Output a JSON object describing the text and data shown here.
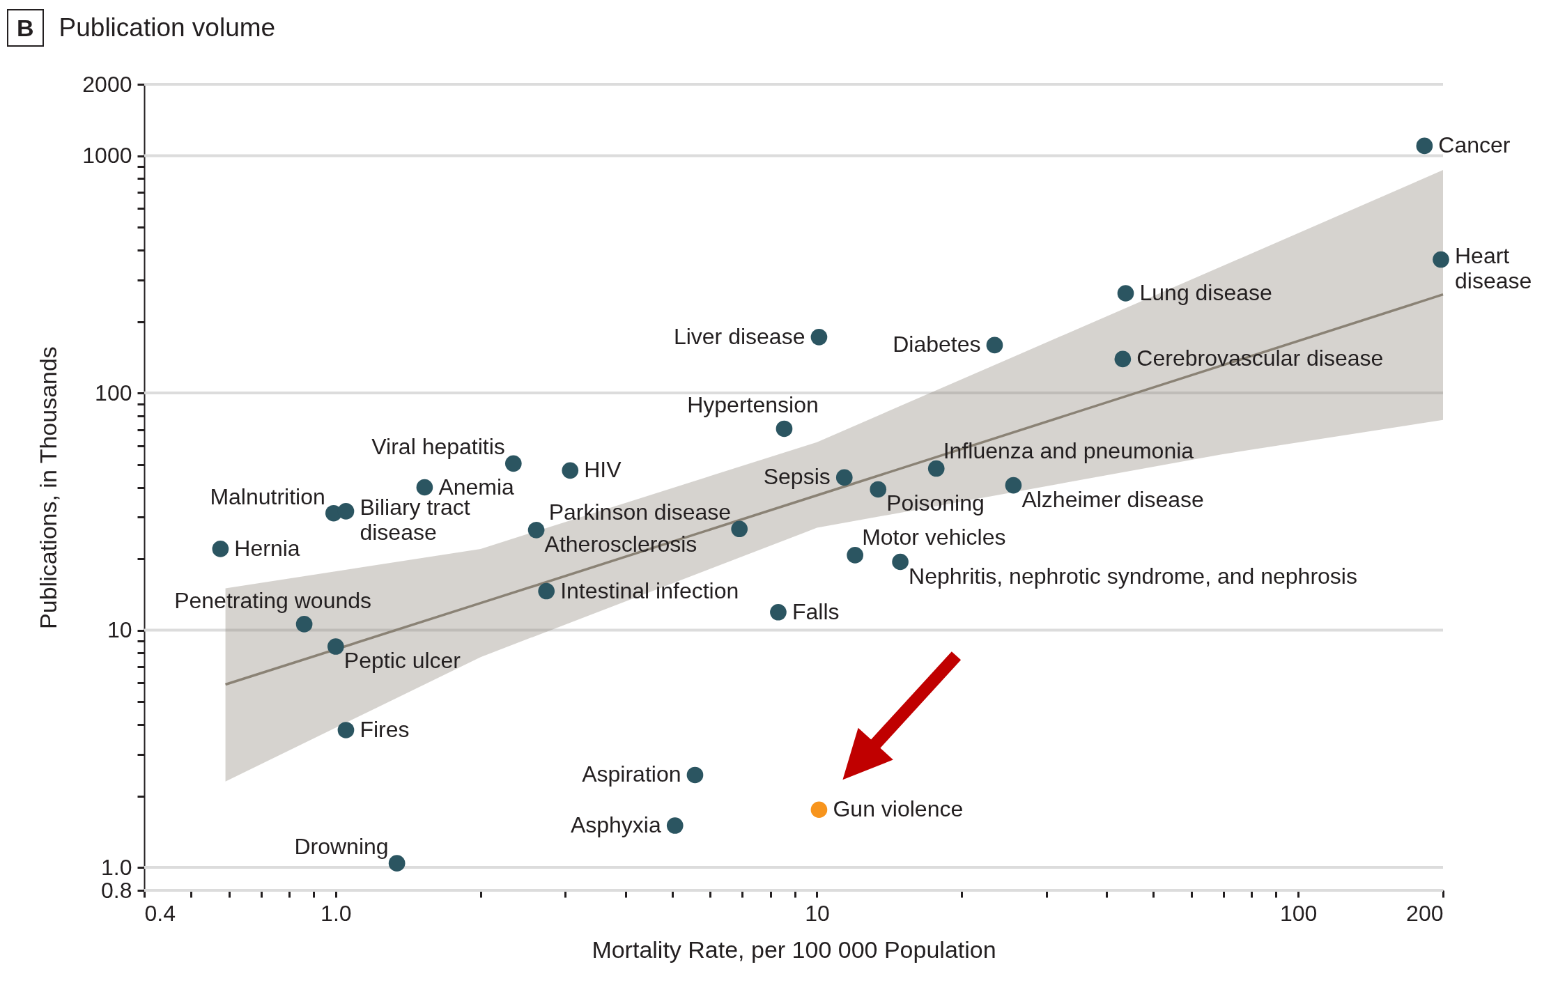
{
  "chart_data": {
    "type": "scatter",
    "title": "Publication volume",
    "xlabel": "Mortality Rate, per 100 000 Population",
    "ylabel": "Publications, in Thousands",
    "log": "xy",
    "grid": "y",
    "marker": "circle",
    "xlim": [
      0.4,
      200
    ],
    "ylim": [
      0.8,
      2000
    ],
    "xticks": [
      0.4,
      {
        "value": 0.5,
        "label": null
      },
      {
        "value": 0.6,
        "label": null
      },
      {
        "value": 0.7,
        "label": null
      },
      {
        "value": 0.8,
        "label": null
      },
      {
        "value": 0.9,
        "label": null
      },
      {
        "value": 1,
        "label": "1.0"
      },
      {
        "value": 2,
        "label": null
      },
      {
        "value": 3,
        "label": null
      },
      {
        "value": 4,
        "label": null
      },
      {
        "value": 5,
        "label": null
      },
      {
        "value": 6,
        "label": null
      },
      {
        "value": 7,
        "label": null
      },
      {
        "value": 8,
        "label": null
      },
      {
        "value": 9,
        "label": null
      },
      10,
      {
        "value": 20,
        "label": null
      },
      {
        "value": 30,
        "label": null
      },
      {
        "value": 40,
        "label": null
      },
      {
        "value": 50,
        "label": null
      },
      {
        "value": 60,
        "label": null
      },
      {
        "value": 70,
        "label": null
      },
      {
        "value": 80,
        "label": null
      },
      {
        "value": 90,
        "label": null
      },
      100,
      200
    ],
    "yticks": [
      0.8,
      {
        "value": 1,
        "label": "1.0"
      },
      {
        "value": 2,
        "label": null
      },
      {
        "value": 3,
        "label": null
      },
      {
        "value": 4,
        "label": null
      },
      {
        "value": 5,
        "label": null
      },
      {
        "value": 6,
        "label": null
      },
      {
        "value": 7,
        "label": null
      },
      {
        "value": 8,
        "label": null
      },
      {
        "value": 9,
        "label": null
      },
      10,
      {
        "value": 20,
        "label": null
      },
      {
        "value": 30,
        "label": null
      },
      {
        "value": 40,
        "label": null
      },
      {
        "value": 50,
        "label": null
      },
      {
        "value": 60,
        "label": null
      },
      {
        "value": 70,
        "label": null
      },
      {
        "value": 80,
        "label": null
      },
      {
        "value": 90,
        "label": null
      },
      100,
      {
        "value": 200,
        "label": null
      },
      {
        "value": 300,
        "label": null
      },
      {
        "value": 400,
        "label": null
      },
      {
        "value": 500,
        "label": null
      },
      {
        "value": 600,
        "label": null
      },
      {
        "value": 700,
        "label": null
      },
      {
        "value": 800,
        "label": null
      },
      {
        "value": 900,
        "label": null
      },
      1000,
      2000
    ],
    "series": [
      {
        "type": "line",
        "marker": "none",
        "color": "#8a8275",
        "x": [
          0.59,
          2,
          10,
          69,
          200
        ],
        "values": [
          5.9,
          13,
          37,
          130,
          260
        ],
        "lower": [
          2.3,
          7.7,
          27,
          55,
          77
        ],
        "upper": [
          15,
          22,
          62,
          340,
          870
        ]
      },
      {
        "color": "#2b5561",
        "x": [
          183,
          198,
          43.8,
          43.2,
          23.4,
          10.1,
          8.55,
          17.7,
          11.4,
          13.4,
          25.6,
          6.9,
          12.0,
          14.9,
          8.31,
          3.07,
          2.34,
          2.61,
          2.74,
          1.53,
          0.99,
          1.05,
          0.576,
          0.86,
          1.0,
          1.05,
          5.58,
          5.07,
          1.34
        ],
        "values": [
          1100,
          365,
          263,
          139,
          159,
          172,
          70.6,
          48.0,
          44.0,
          39.2,
          40.8,
          26.7,
          20.7,
          19.4,
          11.9,
          47.1,
          50.4,
          26.4,
          14.6,
          40.0,
          31.1,
          31.7,
          22.0,
          10.6,
          8.53,
          3.79,
          2.45,
          1.5,
          1.04
        ]
      },
      {
        "color": "#f7941d",
        "x": [
          10.1
        ],
        "values": [
          1.75
        ]
      }
    ],
    "annotations": [
      "B",
      {
        "text": "Cancer",
        "x": 183,
        "y": 1100
      },
      {
        "text": "Heart disease",
        "x": 198,
        "y": 365
      },
      {
        "text": "Lung disease",
        "x": 43.8,
        "y": 263
      },
      {
        "text": "Cerebrovascular disease",
        "x": 43.2,
        "y": 139
      },
      {
        "text": "Diabetes",
        "x": 23.4,
        "y": 159
      },
      {
        "text": "Liver disease",
        "x": 10.1,
        "y": 172
      },
      {
        "text": "Hypertension",
        "x": 8.55,
        "y": 70.6
      },
      {
        "text": "Influenza and pneumonia",
        "x": 17.7,
        "y": 48.0
      },
      {
        "text": "Sepsis",
        "x": 11.4,
        "y": 44.0
      },
      {
        "text": "Poisoning",
        "x": 13.4,
        "y": 39.2
      },
      {
        "text": "Alzheimer disease",
        "x": 25.6,
        "y": 40.8
      },
      {
        "text": "Parkinson disease",
        "x": 6.9,
        "y": 26.7
      },
      {
        "text": "Motor vehicles",
        "x": 12.0,
        "y": 20.7
      },
      {
        "text": "Nephritis, nephrotic syndrome, and nephrosis",
        "x": 14.9,
        "y": 19.4
      },
      {
        "text": "Falls",
        "x": 8.31,
        "y": 11.9
      },
      {
        "text": "HIV",
        "x": 3.07,
        "y": 47.1
      },
      {
        "text": "Viral hepatitis",
        "x": 2.34,
        "y": 50.4
      },
      {
        "text": "Atherosclerosis",
        "x": 2.61,
        "y": 26.4
      },
      {
        "text": "Intestinal infection",
        "x": 2.74,
        "y": 14.6
      },
      {
        "text": "Anemia",
        "x": 1.53,
        "y": 40.0
      },
      {
        "text": "Malnutrition",
        "x": 0.99,
        "y": 31.1
      },
      {
        "text": "Biliary tract disease",
        "x": 1.05,
        "y": 31.7
      },
      {
        "text": "Hernia",
        "x": 0.576,
        "y": 22.0
      },
      {
        "text": "Penetrating wounds",
        "x": 0.86,
        "y": 10.6
      },
      {
        "text": "Peptic ulcer",
        "x": 1.0,
        "y": 8.53
      },
      {
        "text": "Fires",
        "x": 1.05,
        "y": 3.79
      },
      {
        "text": "Aspiration",
        "x": 5.58,
        "y": 2.45
      },
      {
        "text": "Asphyxia",
        "x": 5.07,
        "y": 1.5
      },
      {
        "text": "Drowning",
        "x": 1.34,
        "y": 1.04
      },
      {
        "text": "Gun violence",
        "x": 10.1,
        "y": 1.75
      }
    ]
  }
}
